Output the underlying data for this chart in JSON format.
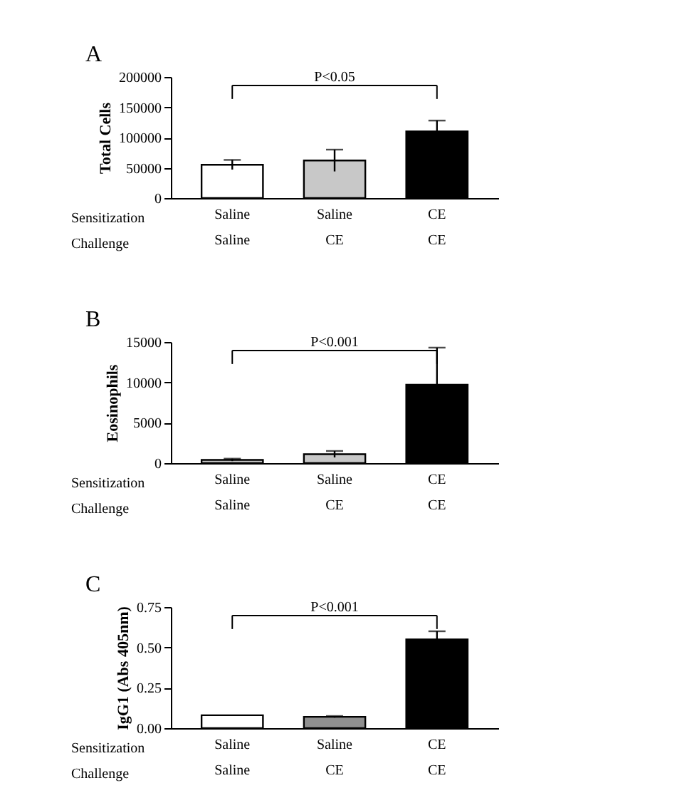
{
  "chart_data": [
    {
      "type": "bar",
      "title": "A",
      "ylabel": "Total Cells",
      "categories": [
        "Saline\nSaline",
        "Saline\nCE",
        "CE\nCE"
      ],
      "values": [
        55000,
        62000,
        110000
      ],
      "errors": [
        8000,
        18000,
        18000
      ],
      "colors": [
        "#ffffff",
        "#c8c8c8",
        "#000000"
      ],
      "ylim": [
        0,
        200000
      ],
      "yticks": [
        0,
        50000,
        100000,
        150000,
        200000
      ],
      "grid": false,
      "annotations": [
        "P<0.05",
        "Sensitization",
        "Challenge"
      ]
    },
    {
      "type": "bar",
      "title": "B",
      "ylabel": "Eosinophils",
      "categories": [
        "Saline\nSaline",
        "Saline\nCE",
        "CE\nCE"
      ],
      "values": [
        400,
        1100,
        9700
      ],
      "errors": [
        150,
        400,
        4600
      ],
      "colors": [
        "#c8c8c8",
        "#c8c8c8",
        "#000000"
      ],
      "ylim": [
        0,
        15000
      ],
      "yticks": [
        0,
        5000,
        10000,
        15000
      ],
      "grid": false,
      "annotations": [
        "P<0.001",
        "Sensitization",
        "Challenge"
      ]
    },
    {
      "type": "bar",
      "title": "C",
      "ylabel": "IgG1 (Abs 405nm)",
      "categories": [
        "Saline\nSaline",
        "Saline\nCE",
        "CE\nCE"
      ],
      "values": [
        0.08,
        0.07,
        0.55
      ],
      "errors": [
        null,
        0.005,
        0.05
      ],
      "colors": [
        "#ffffff",
        "#909090",
        "#000000"
      ],
      "ylim": [
        0,
        0.75
      ],
      "yticks": [
        {
          "value": 0,
          "label": "0.00"
        },
        {
          "value": 0.25,
          "label": "0.25"
        },
        {
          "value": 0.5,
          "label": "0.50"
        },
        {
          "value": 0.75,
          "label": "0.75"
        }
      ],
      "grid": false,
      "annotations": [
        "P<0.001",
        "Sensitization",
        "Challenge"
      ]
    }
  ]
}
